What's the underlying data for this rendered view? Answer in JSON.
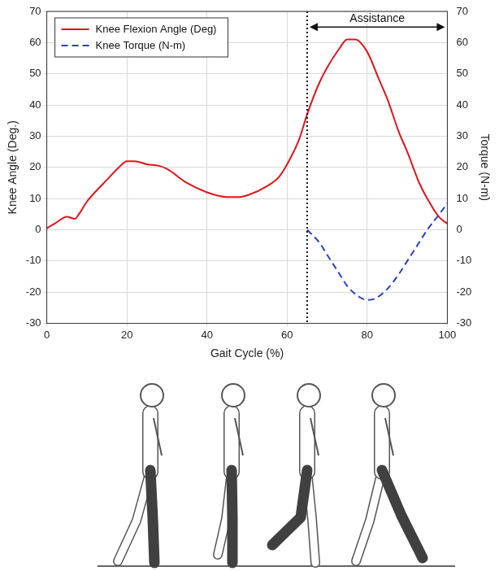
{
  "chart_data": {
    "type": "line",
    "x_label": "Gait Cycle (%)",
    "y_label": "Knee Angle (Deg.)",
    "y2_label": "Torque (N-m)",
    "xlim": [
      0,
      100
    ],
    "xticks": [
      0,
      20,
      40,
      60,
      80,
      100
    ],
    "ylim": [
      -30,
      70
    ],
    "yticks": [
      -30,
      -20,
      -10,
      0,
      10,
      20,
      30,
      40,
      50,
      60,
      70
    ],
    "y2lim": [
      -30,
      70
    ],
    "y2ticks": [
      -30,
      -20,
      -10,
      0,
      10,
      20,
      30,
      40,
      50,
      60,
      70
    ],
    "grid": true,
    "legend": "upper left",
    "series": [
      {
        "name": "Knee Flexion Angle (Deg)",
        "color": "#e3131b",
        "line_style": "solid",
        "x": [
          0,
          2,
          5,
          7,
          8,
          10,
          12,
          15,
          18,
          20,
          22,
          25,
          28,
          30,
          35,
          40,
          45,
          48,
          50,
          55,
          58,
          60,
          63,
          65,
          68,
          70,
          73,
          75,
          77,
          80,
          83,
          85,
          88,
          90,
          93,
          95,
          98,
          100
        ],
        "values": [
          0.5,
          2,
          4.2,
          3.5,
          5,
          9,
          12,
          16,
          20,
          22,
          22,
          21,
          20.5,
          19.5,
          15,
          12,
          10.5,
          10.5,
          11,
          14,
          17,
          21,
          29,
          37,
          47,
          52,
          58,
          61,
          61,
          57,
          48,
          42,
          31,
          25,
          15,
          10,
          4,
          2
        ]
      },
      {
        "name": "Knee Torque (N-m)",
        "color": "#2743c4",
        "line_style": "dashed",
        "axis": "y2",
        "x": [
          65,
          68,
          70,
          73,
          75,
          78,
          80,
          82,
          85,
          88,
          90,
          93,
          95,
          98,
          100
        ],
        "values": [
          0,
          -4,
          -8,
          -14,
          -18,
          -21.5,
          -22.5,
          -22,
          -19,
          -14,
          -10,
          -4,
          0,
          5,
          8.5
        ]
      }
    ],
    "annotations": [
      {
        "type": "vline",
        "x": 65,
        "line_style": "dotted"
      },
      {
        "type": "arrow",
        "text": "Assistance",
        "x": [
          65,
          100
        ],
        "y": 65
      }
    ]
  }
}
